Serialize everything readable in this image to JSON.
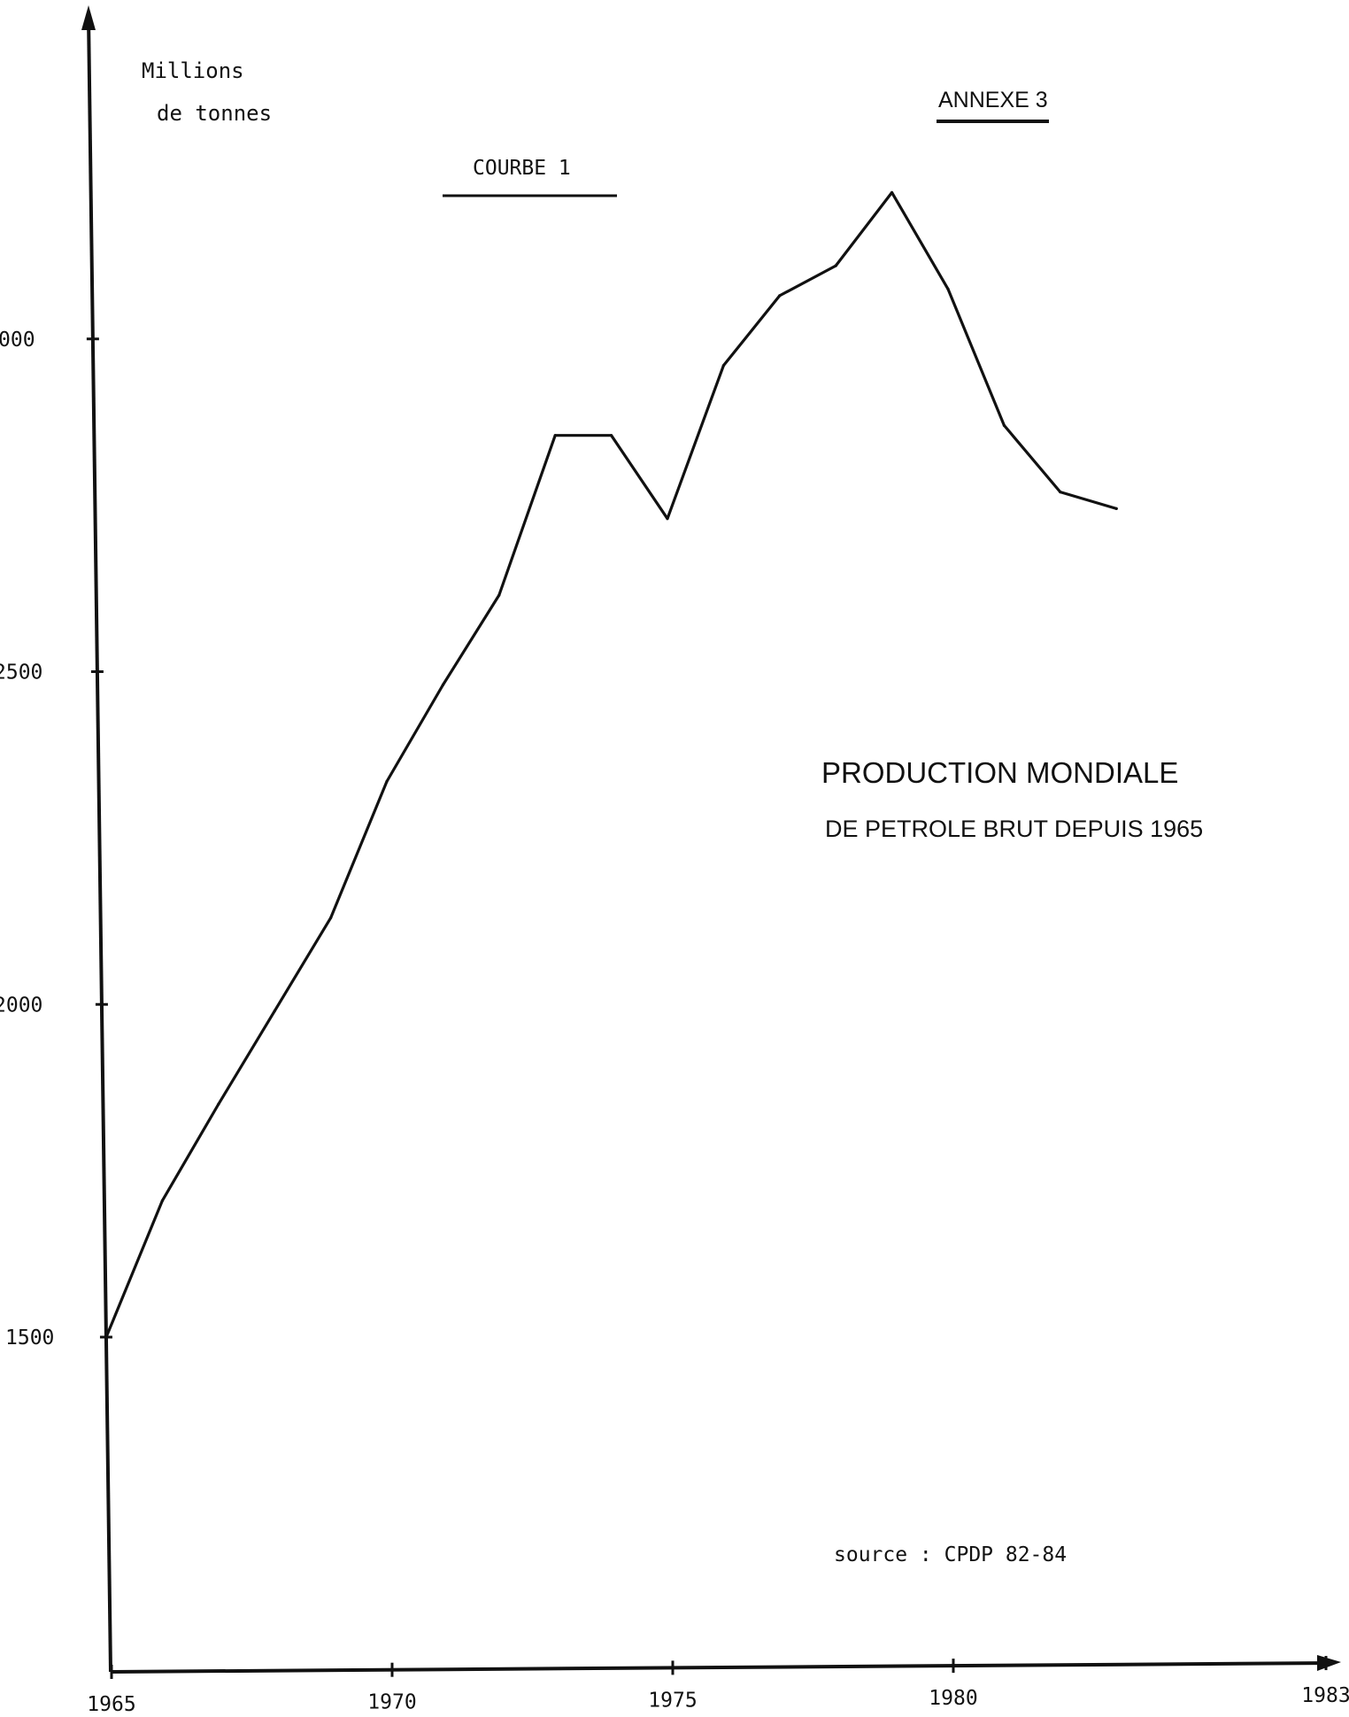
{
  "chart_data": {
    "type": "line",
    "annex_label": "ANNEXE 3",
    "curve_label": "COURBE 1",
    "ylabel_line1": "Millions",
    "ylabel_line2": "de tonnes",
    "title_line1": "PRODUCTION MONDIALE",
    "title_line2": "DE PETROLE BRUT DEPUIS 1965",
    "source": "source : CPDP  82-84",
    "x_ticks": [
      "1965",
      "1970",
      "1975",
      "1980",
      "1983"
    ],
    "y_ticks": [
      "1500",
      "2000",
      "2500",
      "000"
    ],
    "xlim": [
      1965,
      1983
    ],
    "ylim": [
      1000,
      3500
    ],
    "grid": false,
    "series": [
      {
        "x": [
          1965,
          1966,
          1967,
          1968,
          1969,
          1970,
          1971,
          1972,
          1973,
          1974,
          1975,
          1976,
          1977,
          1978,
          1979,
          1980,
          1981,
          1982,
          1983
        ],
        "values": [
          1500,
          1705,
          1850,
          1990,
          2130,
          2335,
          2480,
          2615,
          2855,
          2855,
          2730,
          2960,
          3065,
          3110,
          3220,
          3075,
          2870,
          2770,
          2745
        ]
      }
    ]
  }
}
